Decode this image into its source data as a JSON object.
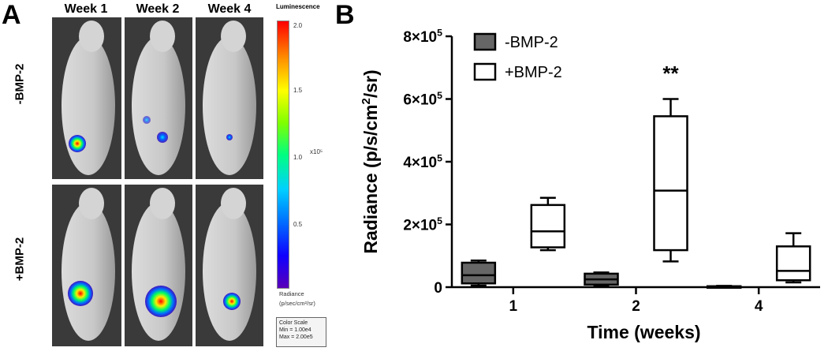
{
  "panelA": {
    "letter": "A",
    "weeks": [
      "Week 1",
      "Week 2",
      "Week 4"
    ],
    "rows": [
      "-BMP-2",
      "+BMP-2"
    ],
    "colorbar": {
      "title": "Luminescence",
      "ticks": [
        "2.0",
        "1.5",
        "1.0",
        "0.5"
      ],
      "exponent": "x10⁵",
      "unit_line1": "Radiance",
      "unit_line2": "(p/sec/cm²/sr)"
    },
    "color_scale": {
      "line1": "Color Scale",
      "line2": "Min = 1.00e4",
      "line3": "Max = 2.00e5"
    }
  },
  "panelB": {
    "letter": "B"
  },
  "chart_data": {
    "type": "box",
    "categories": [
      "1",
      "2",
      "4"
    ],
    "xlabel": "Time (weeks)",
    "ylabel": "Radiance (p/s/cm²/sr)",
    "ylim": [
      0,
      800000
    ],
    "yticks": [
      {
        "value": 0,
        "label": "0"
      },
      {
        "value": 200000,
        "label": "2×10⁵"
      },
      {
        "value": 400000,
        "label": "4×10⁵"
      },
      {
        "value": 600000,
        "label": "6×10⁵"
      },
      {
        "value": 800000,
        "label": "8×10⁵"
      }
    ],
    "legend_position": "top-left",
    "series": [
      {
        "name": "-BMP-2",
        "color": "#666666",
        "boxes": [
          {
            "min": 5000,
            "q1": 12000,
            "median": 38000,
            "q3": 78000,
            "max": 85000
          },
          {
            "min": 3000,
            "q1": 8000,
            "median": 25000,
            "q3": 43000,
            "max": 47000
          },
          {
            "min": 0,
            "q1": 500,
            "median": 1500,
            "q3": 3000,
            "max": 4000
          }
        ]
      },
      {
        "name": "+BMP-2",
        "color": "#ffffff",
        "boxes": [
          {
            "min": 118000,
            "q1": 127000,
            "median": 178000,
            "q3": 262000,
            "max": 285000
          },
          {
            "min": 82000,
            "q1": 118000,
            "median": 308000,
            "q3": 545000,
            "max": 600000
          },
          {
            "min": 15000,
            "q1": 22000,
            "median": 52000,
            "q3": 130000,
            "max": 172000
          }
        ]
      }
    ],
    "annotations": [
      {
        "category": "2",
        "text": "**",
        "y": 700000
      }
    ]
  }
}
